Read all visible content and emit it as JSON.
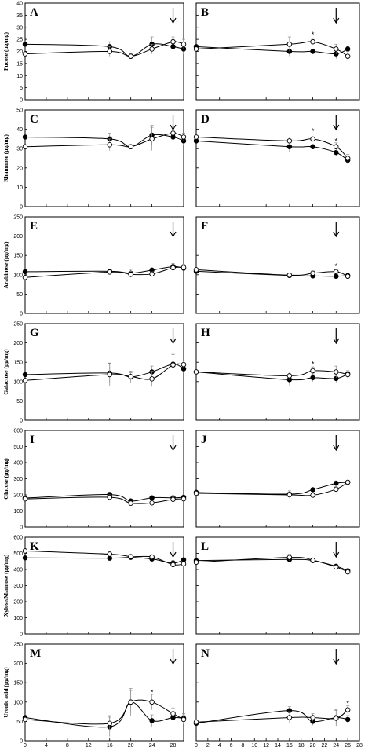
{
  "chart_data": [
    {
      "panel": "A",
      "type": "line",
      "ylabel": "Fucose (µg/mg)",
      "ylim": [
        0,
        40
      ],
      "yticks": [
        0,
        5,
        10,
        15,
        20,
        25,
        30,
        35,
        40
      ],
      "xlim": [
        0,
        30
      ],
      "xticks": [
        0,
        4,
        8,
        12,
        16,
        20,
        24,
        28
      ],
      "x": [
        0,
        16,
        20,
        24,
        28,
        30
      ],
      "series": [
        {
          "marker": "filled",
          "values": [
            23,
            22,
            18,
            23,
            22,
            21
          ]
        },
        {
          "marker": "open",
          "values": [
            19,
            20,
            18,
            21,
            24,
            23
          ]
        }
      ],
      "errors": [
        [
          0,
          2,
          1,
          3,
          3,
          2
        ],
        [
          0,
          2,
          1,
          2,
          2,
          2
        ]
      ],
      "arrow_x": 28,
      "stars": []
    },
    {
      "panel": "B",
      "type": "line",
      "ylabel": "",
      "ylim": [
        0,
        40
      ],
      "yticks": [
        0,
        5,
        10,
        15,
        20,
        25,
        30,
        35,
        40
      ],
      "xlim": [
        0,
        28
      ],
      "xticks": [
        0,
        4,
        8,
        12,
        16,
        20,
        24,
        28
      ],
      "x": [
        0,
        16,
        20,
        24,
        26
      ],
      "series": [
        {
          "marker": "filled",
          "values": [
            22,
            20,
            20,
            19,
            21
          ]
        },
        {
          "marker": "open",
          "values": [
            21,
            23,
            24,
            21,
            18
          ]
        }
      ],
      "errors": [
        [
          0,
          2,
          1,
          2,
          1
        ],
        [
          0,
          3,
          1,
          2,
          2
        ]
      ],
      "arrow_x": 24,
      "stars": [
        {
          "x": 20,
          "y": 27
        }
      ]
    },
    {
      "panel": "C",
      "type": "line",
      "ylabel": "Rhamnose (µg/mg)",
      "ylim": [
        0,
        50
      ],
      "yticks": [
        0,
        10,
        20,
        30,
        40,
        50
      ],
      "xlim": [
        0,
        30
      ],
      "xticks": [
        0,
        4,
        8,
        12,
        16,
        20,
        24,
        28
      ],
      "x": [
        0,
        16,
        20,
        24,
        28,
        30
      ],
      "series": [
        {
          "marker": "filled",
          "values": [
            36,
            35,
            31,
            37,
            36,
            34
          ]
        },
        {
          "marker": "open",
          "values": [
            31,
            32,
            31,
            35,
            38,
            36
          ]
        }
      ],
      "errors": [
        [
          0,
          3,
          1,
          5,
          3,
          2
        ],
        [
          0,
          3,
          1,
          6,
          3,
          2
        ]
      ],
      "arrow_x": 28,
      "stars": []
    },
    {
      "panel": "D",
      "type": "line",
      "ylabel": "",
      "ylim": [
        0,
        50
      ],
      "yticks": [
        0,
        10,
        20,
        30,
        40,
        50
      ],
      "xlim": [
        0,
        28
      ],
      "xticks": [
        0,
        4,
        8,
        12,
        16,
        20,
        24,
        28
      ],
      "x": [
        0,
        16,
        20,
        24,
        26
      ],
      "series": [
        {
          "marker": "filled",
          "values": [
            34,
            31,
            31,
            28,
            24
          ]
        },
        {
          "marker": "open",
          "values": [
            36,
            34,
            35,
            31,
            25
          ]
        }
      ],
      "errors": [
        [
          0,
          3,
          1,
          2,
          2
        ],
        [
          0,
          2,
          1,
          2,
          2
        ]
      ],
      "arrow_x": 24,
      "stars": [
        {
          "x": 20,
          "y": 39
        },
        {
          "x": 24,
          "y": 34
        }
      ]
    },
    {
      "panel": "E",
      "type": "line",
      "ylabel": "Arabinose (µg/mg)",
      "ylim": [
        0,
        250
      ],
      "yticks": [
        0,
        50,
        100,
        150,
        200,
        250
      ],
      "xlim": [
        0,
        30
      ],
      "xticks": [
        0,
        4,
        8,
        12,
        16,
        20,
        24,
        28
      ],
      "x": [
        0,
        16,
        20,
        24,
        28,
        30
      ],
      "series": [
        {
          "marker": "filled",
          "values": [
            108,
            109,
            104,
            112,
            121,
            117
          ]
        },
        {
          "marker": "open",
          "values": [
            93,
            107,
            101,
            102,
            118,
            119
          ]
        }
      ],
      "errors": [
        [
          0,
          6,
          10,
          5,
          8,
          6
        ],
        [
          0,
          5,
          8,
          6,
          10,
          8
        ]
      ],
      "arrow_x": 28,
      "stars": []
    },
    {
      "panel": "F",
      "type": "line",
      "ylabel": "",
      "ylim": [
        0,
        250
      ],
      "yticks": [
        0,
        50,
        100,
        150,
        200,
        250
      ],
      "xlim": [
        0,
        28
      ],
      "xticks": [
        0,
        4,
        8,
        12,
        16,
        20,
        24,
        28
      ],
      "x": [
        0,
        16,
        20,
        24,
        26
      ],
      "series": [
        {
          "marker": "filled",
          "values": [
            109,
            98,
            97,
            96,
            98
          ]
        },
        {
          "marker": "open",
          "values": [
            113,
            99,
            104,
            108,
            96
          ]
        }
      ],
      "errors": [
        [
          0,
          4,
          4,
          5,
          4
        ],
        [
          0,
          4,
          6,
          6,
          4
        ]
      ],
      "arrow_x": 24,
      "stars": [
        {
          "x": 24,
          "y": 122
        }
      ]
    },
    {
      "panel": "G",
      "type": "line",
      "ylabel": "Galactose (µg/mg)",
      "ylim": [
        0,
        250
      ],
      "yticks": [
        0,
        50,
        100,
        150,
        200,
        250
      ],
      "xlim": [
        0,
        30
      ],
      "xticks": [
        0,
        4,
        8,
        12,
        16,
        20,
        24,
        28
      ],
      "x": [
        0,
        16,
        20,
        24,
        28,
        30
      ],
      "series": [
        {
          "marker": "filled",
          "values": [
            118,
            122,
            112,
            125,
            145,
            133
          ]
        },
        {
          "marker": "open",
          "values": [
            103,
            118,
            113,
            107,
            143,
            144
          ]
        }
      ],
      "errors": [
        [
          0,
          25,
          15,
          15,
          25,
          10
        ],
        [
          0,
          30,
          10,
          20,
          30,
          10
        ]
      ],
      "arrow_x": 28,
      "stars": []
    },
    {
      "panel": "H",
      "type": "line",
      "ylabel": "",
      "ylim": [
        0,
        250
      ],
      "yticks": [
        0,
        50,
        100,
        150,
        200,
        250
      ],
      "xlim": [
        0,
        28
      ],
      "xticks": [
        0,
        4,
        8,
        12,
        16,
        20,
        24,
        28
      ],
      "x": [
        0,
        16,
        20,
        24,
        26
      ],
      "series": [
        {
          "marker": "filled",
          "values": [
            125,
            105,
            110,
            108,
            120
          ]
        },
        {
          "marker": "open",
          "values": [
            125,
            115,
            128,
            125,
            118
          ]
        }
      ],
      "errors": [
        [
          0,
          15,
          10,
          10,
          8
        ],
        [
          0,
          10,
          10,
          15,
          10
        ]
      ],
      "arrow_x": 24,
      "stars": [
        {
          "x": 20,
          "y": 145
        }
      ]
    },
    {
      "panel": "I",
      "type": "line",
      "ylabel": "Glucose (µg/mg)",
      "ylim": [
        0,
        600
      ],
      "yticks": [
        0,
        100,
        200,
        300,
        400,
        500,
        600
      ],
      "xlim": [
        0,
        30
      ],
      "xticks": [
        0,
        4,
        8,
        12,
        16,
        20,
        24,
        28
      ],
      "x": [
        0,
        16,
        20,
        24,
        28,
        30
      ],
      "series": [
        {
          "marker": "filled",
          "values": [
            180,
            202,
            162,
            182,
            182,
            185
          ]
        },
        {
          "marker": "open",
          "values": [
            175,
            185,
            148,
            150,
            172,
            175
          ]
        }
      ],
      "errors": [
        [
          0,
          15,
          10,
          10,
          12,
          10
        ],
        [
          0,
          15,
          12,
          12,
          15,
          10
        ]
      ],
      "arrow_x": 28,
      "stars": []
    },
    {
      "panel": "J",
      "type": "line",
      "ylabel": "",
      "ylim": [
        0,
        600
      ],
      "yticks": [
        0,
        100,
        200,
        300,
        400,
        500,
        600
      ],
      "xlim": [
        0,
        28
      ],
      "xticks": [
        0,
        4,
        8,
        12,
        16,
        20,
        24,
        28
      ],
      "x": [
        0,
        16,
        20,
        24,
        26
      ],
      "series": [
        {
          "marker": "filled",
          "values": [
            215,
            205,
            232,
            272,
            278
          ]
        },
        {
          "marker": "open",
          "values": [
            210,
            200,
            198,
            235,
            278
          ]
        }
      ],
      "errors": [
        [
          0,
          20,
          10,
          15,
          10
        ],
        [
          0,
          15,
          10,
          15,
          10
        ]
      ],
      "arrow_x": 24,
      "stars": []
    },
    {
      "panel": "K",
      "type": "line",
      "ylabel": "Xylose/Mannose (µg/mg)",
      "ylim": [
        0,
        600
      ],
      "yticks": [
        0,
        100,
        200,
        300,
        400,
        500,
        600
      ],
      "xlim": [
        0,
        30
      ],
      "xticks": [
        0,
        4,
        8,
        12,
        16,
        20,
        24,
        28
      ],
      "x": [
        0,
        16,
        20,
        24,
        28,
        30
      ],
      "series": [
        {
          "marker": "filled",
          "values": [
            472,
            470,
            475,
            465,
            440,
            460
          ]
        },
        {
          "marker": "open",
          "values": [
            515,
            495,
            480,
            478,
            430,
            435
          ]
        }
      ],
      "errors": [
        [
          0,
          12,
          10,
          10,
          15,
          10
        ],
        [
          0,
          15,
          12,
          10,
          15,
          10
        ]
      ],
      "arrow_x": 28,
      "stars": []
    },
    {
      "panel": "L",
      "type": "line",
      "ylabel": "",
      "ylim": [
        0,
        600
      ],
      "yticks": [
        0,
        100,
        200,
        300,
        400,
        500,
        600
      ],
      "xlim": [
        0,
        28
      ],
      "xticks": [
        0,
        4,
        8,
        12,
        16,
        20,
        24,
        28
      ],
      "x": [
        0,
        16,
        20,
        24,
        26
      ],
      "series": [
        {
          "marker": "filled",
          "values": [
            455,
            462,
            455,
            420,
            392
          ]
        },
        {
          "marker": "open",
          "values": [
            445,
            475,
            458,
            415,
            385
          ]
        }
      ],
      "errors": [
        [
          0,
          15,
          10,
          10,
          10
        ],
        [
          0,
          20,
          10,
          12,
          12
        ]
      ],
      "arrow_x": 24,
      "stars": []
    },
    {
      "panel": "M",
      "type": "line",
      "ylabel": "Uronic acid (µg/mg)",
      "xlabel": "Days",
      "ylim": [
        0,
        250
      ],
      "yticks": [
        0,
        50,
        100,
        150,
        200,
        250
      ],
      "xlim": [
        0,
        30
      ],
      "xticks": [
        0,
        4,
        8,
        12,
        16,
        20,
        24,
        28
      ],
      "x": [
        0,
        16,
        20,
        24,
        28,
        30
      ],
      "series": [
        {
          "marker": "filled",
          "values": [
            60,
            36,
            100,
            52,
            60,
            58
          ]
        },
        {
          "marker": "open",
          "values": [
            55,
            45,
            100,
            100,
            70,
            55
          ]
        }
      ],
      "errors": [
        [
          0,
          25,
          30,
          15,
          15,
          12
        ],
        [
          0,
          20,
          35,
          20,
          15,
          12
        ]
      ],
      "arrow_x": 28,
      "stars": [
        {
          "x": 24,
          "y": 125
        }
      ]
    },
    {
      "panel": "N",
      "type": "line",
      "ylabel": "",
      "xlabel": "Days",
      "ylim": [
        0,
        250
      ],
      "yticks": [
        0,
        50,
        100,
        150,
        200,
        250
      ],
      "xlim": [
        0,
        28
      ],
      "xticks": [
        0,
        2,
        4,
        6,
        8,
        10,
        12,
        14,
        16,
        18,
        20,
        22,
        24,
        26,
        28
      ],
      "x": [
        0,
        16,
        20,
        24,
        26
      ],
      "series": [
        {
          "marker": "filled",
          "values": [
            45,
            78,
            50,
            60,
            55
          ]
        },
        {
          "marker": "open",
          "values": [
            48,
            60,
            60,
            58,
            80
          ]
        }
      ],
      "errors": [
        [
          0,
          10,
          10,
          20,
          10
        ],
        [
          0,
          15,
          10,
          20,
          10
        ]
      ],
      "arrow_x": 24,
      "stars": [
        {
          "x": 26,
          "y": 97
        }
      ]
    }
  ]
}
